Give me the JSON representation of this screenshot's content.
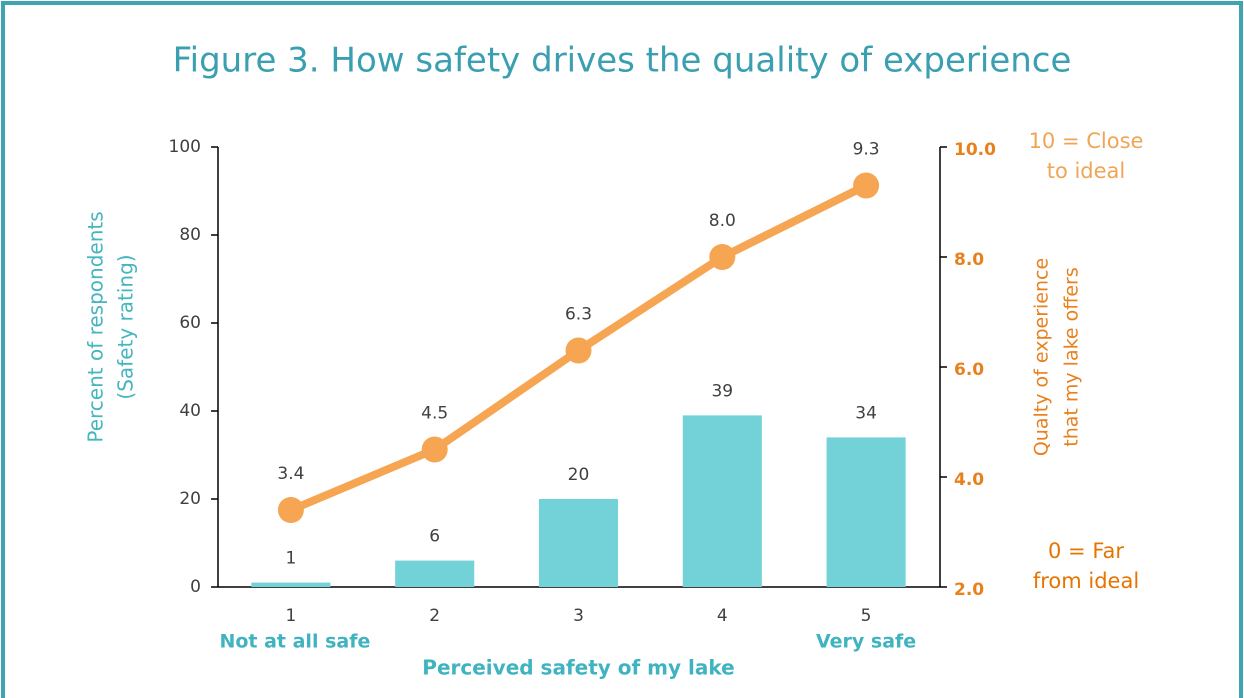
{
  "chart_data": {
    "type": "bar",
    "title": "Figure 3. How safety drives the quality of experience",
    "categories": [
      "1",
      "2",
      "3",
      "4",
      "5"
    ],
    "series": [
      {
        "type": "bar",
        "color": "#72d2d8",
        "values": [
          1,
          6,
          20,
          39,
          34
        ]
      },
      {
        "type": "line",
        "axis": "y2",
        "color": "#f6a552",
        "values": [
          3.4,
          4.5,
          6.3,
          8.0,
          9.3
        ],
        "value_labels": [
          "3.4",
          "4.5",
          "6.3",
          "8.0",
          "9.3"
        ]
      }
    ],
    "ylim": [
      0,
      100
    ],
    "yticks": [
      0,
      20,
      40,
      60,
      80,
      100
    ],
    "y2lim": [
      2,
      10
    ],
    "y2ticks": [
      {
        "value": 2,
        "label": "2.0"
      },
      {
        "value": 4,
        "label": "4.0"
      },
      {
        "value": 6,
        "label": "6.0"
      },
      {
        "value": 8,
        "label": "8.0"
      },
      {
        "value": 10,
        "label": "10.0"
      }
    ],
    "ylabel": [
      "Percent of respondents",
      "(Safety rating)"
    ],
    "y2label": [
      "Qualty of experience",
      "that my lake offers"
    ],
    "xlabel": "Perceived safety of my lake",
    "x_end_labels": [
      "Not at all safe",
      "Very safe"
    ],
    "annotations": [
      [
        "10 = Close",
        "to ideal"
      ],
      [
        "0 = Far",
        "from ideal"
      ]
    ]
  }
}
